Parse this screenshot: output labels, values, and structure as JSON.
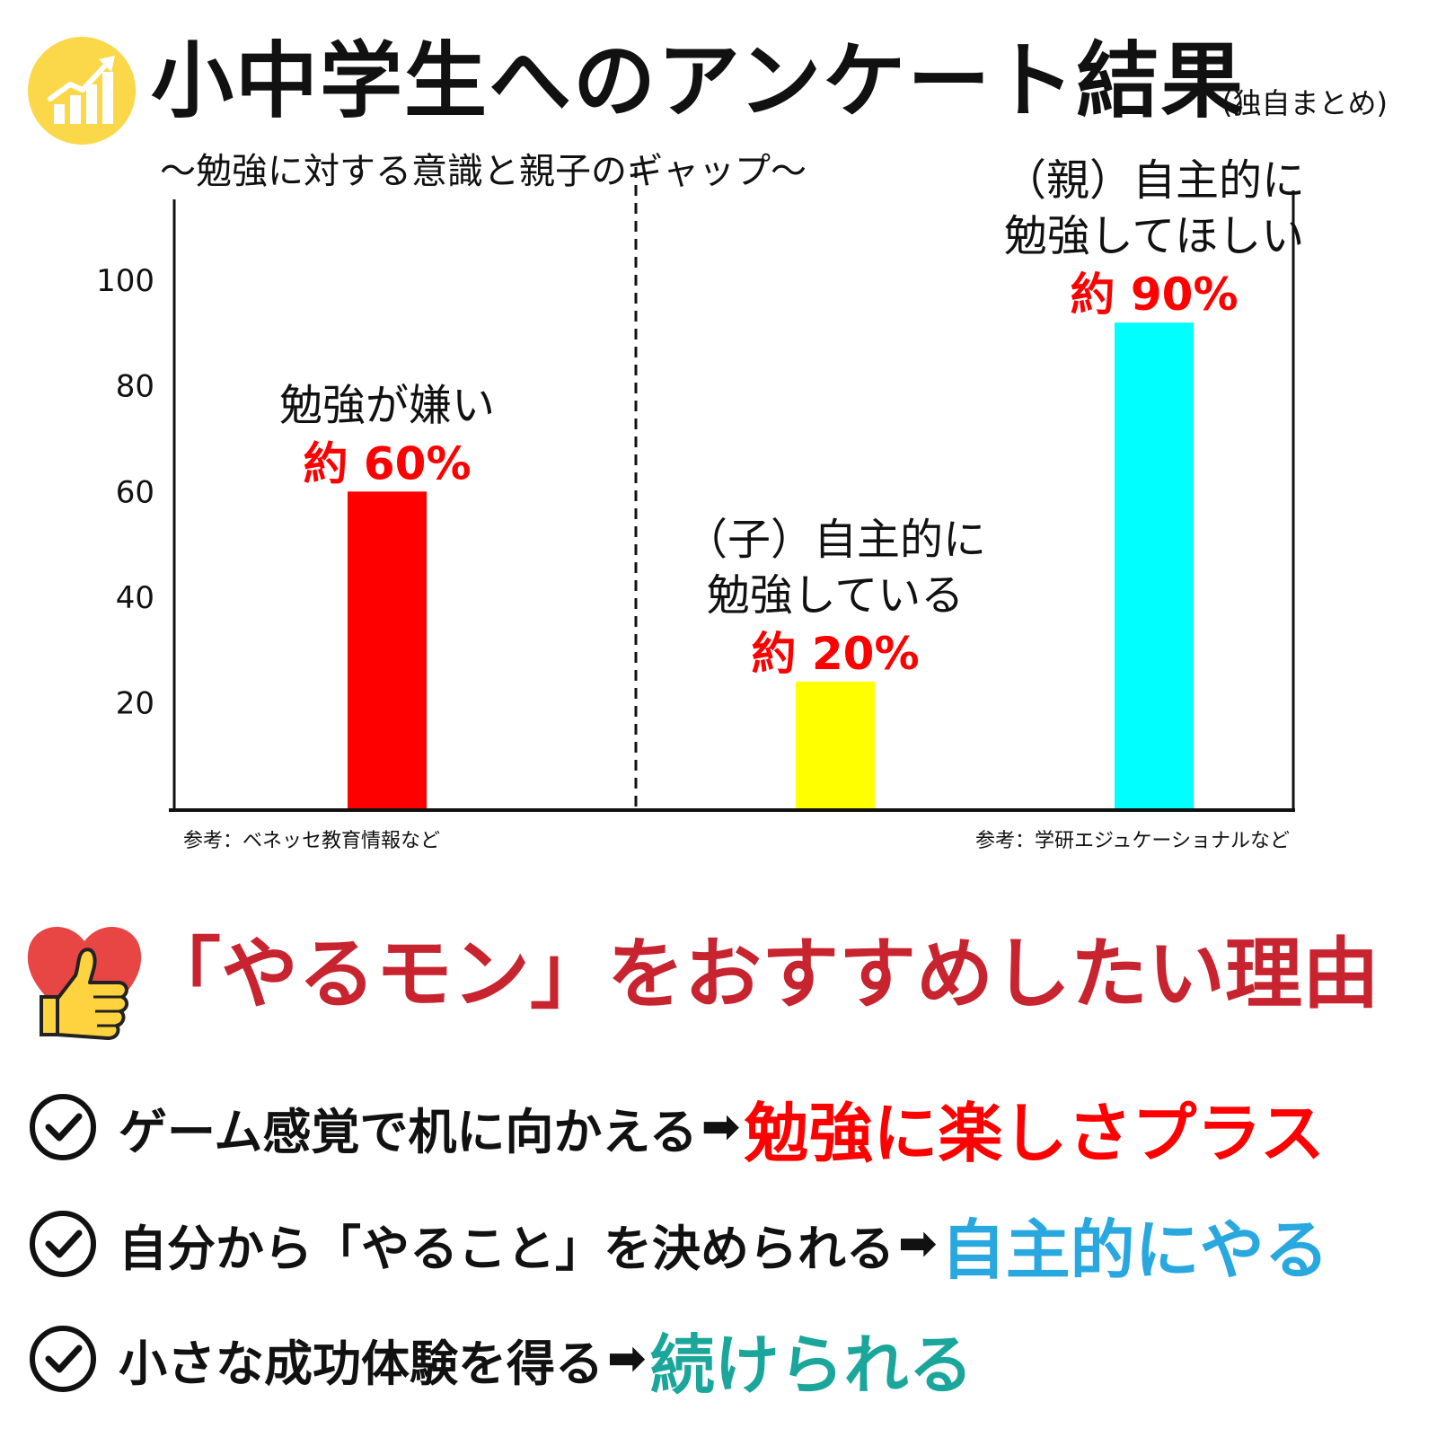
{
  "header": {
    "title": "小中学生へのアンケート結果",
    "note": "(独自まとめ)",
    "subtitle": "〜勉強に対する意識と親子のギャップ〜",
    "icon": "chart-growth-icon",
    "icon_bg_color": "#fbd84a"
  },
  "chart_data": {
    "type": "bar",
    "yticks": [
      20,
      40,
      60,
      80,
      100
    ],
    "ylim": [
      0,
      115
    ],
    "grid": false,
    "groups": [
      {
        "source": "参考：ベネッセ教育情報など",
        "bars": [
          {
            "label_lines": [
              "勉強が嫌い"
            ],
            "value_label": "約 60%",
            "value": 60,
            "color": "#ff0000"
          }
        ]
      },
      {
        "source": "参考：学研エジュケーショナルなど",
        "bars": [
          {
            "label_lines": [
              "（子）自主的に",
              "勉強している"
            ],
            "value_label": "約 20%",
            "value": 24,
            "color": "#ffff00"
          },
          {
            "label_lines": [
              "（親）自主的に",
              "勉強してほしい"
            ],
            "value_label": "約 90%",
            "value": 92,
            "color": "#00ffff"
          }
        ]
      }
    ],
    "value_label_color": "#ff0000"
  },
  "reasons": {
    "title": "「やるモン」をおすすめしたい理由",
    "icon": "heart-thumbs-up-icon",
    "title_color": "#c8242f",
    "arrow": "➡",
    "items": [
      {
        "text": "ゲーム感覚で机に向かえる",
        "highlight": "勉強に楽しさプラス",
        "color": "#ff0000"
      },
      {
        "text": "自分から「やること」を決められる",
        "highlight": "自主的にやる",
        "color": "#29a8e0"
      },
      {
        "text": "小さな成功体験を得る",
        "highlight": "続けられる",
        "color": "#1aa69a"
      }
    ]
  }
}
